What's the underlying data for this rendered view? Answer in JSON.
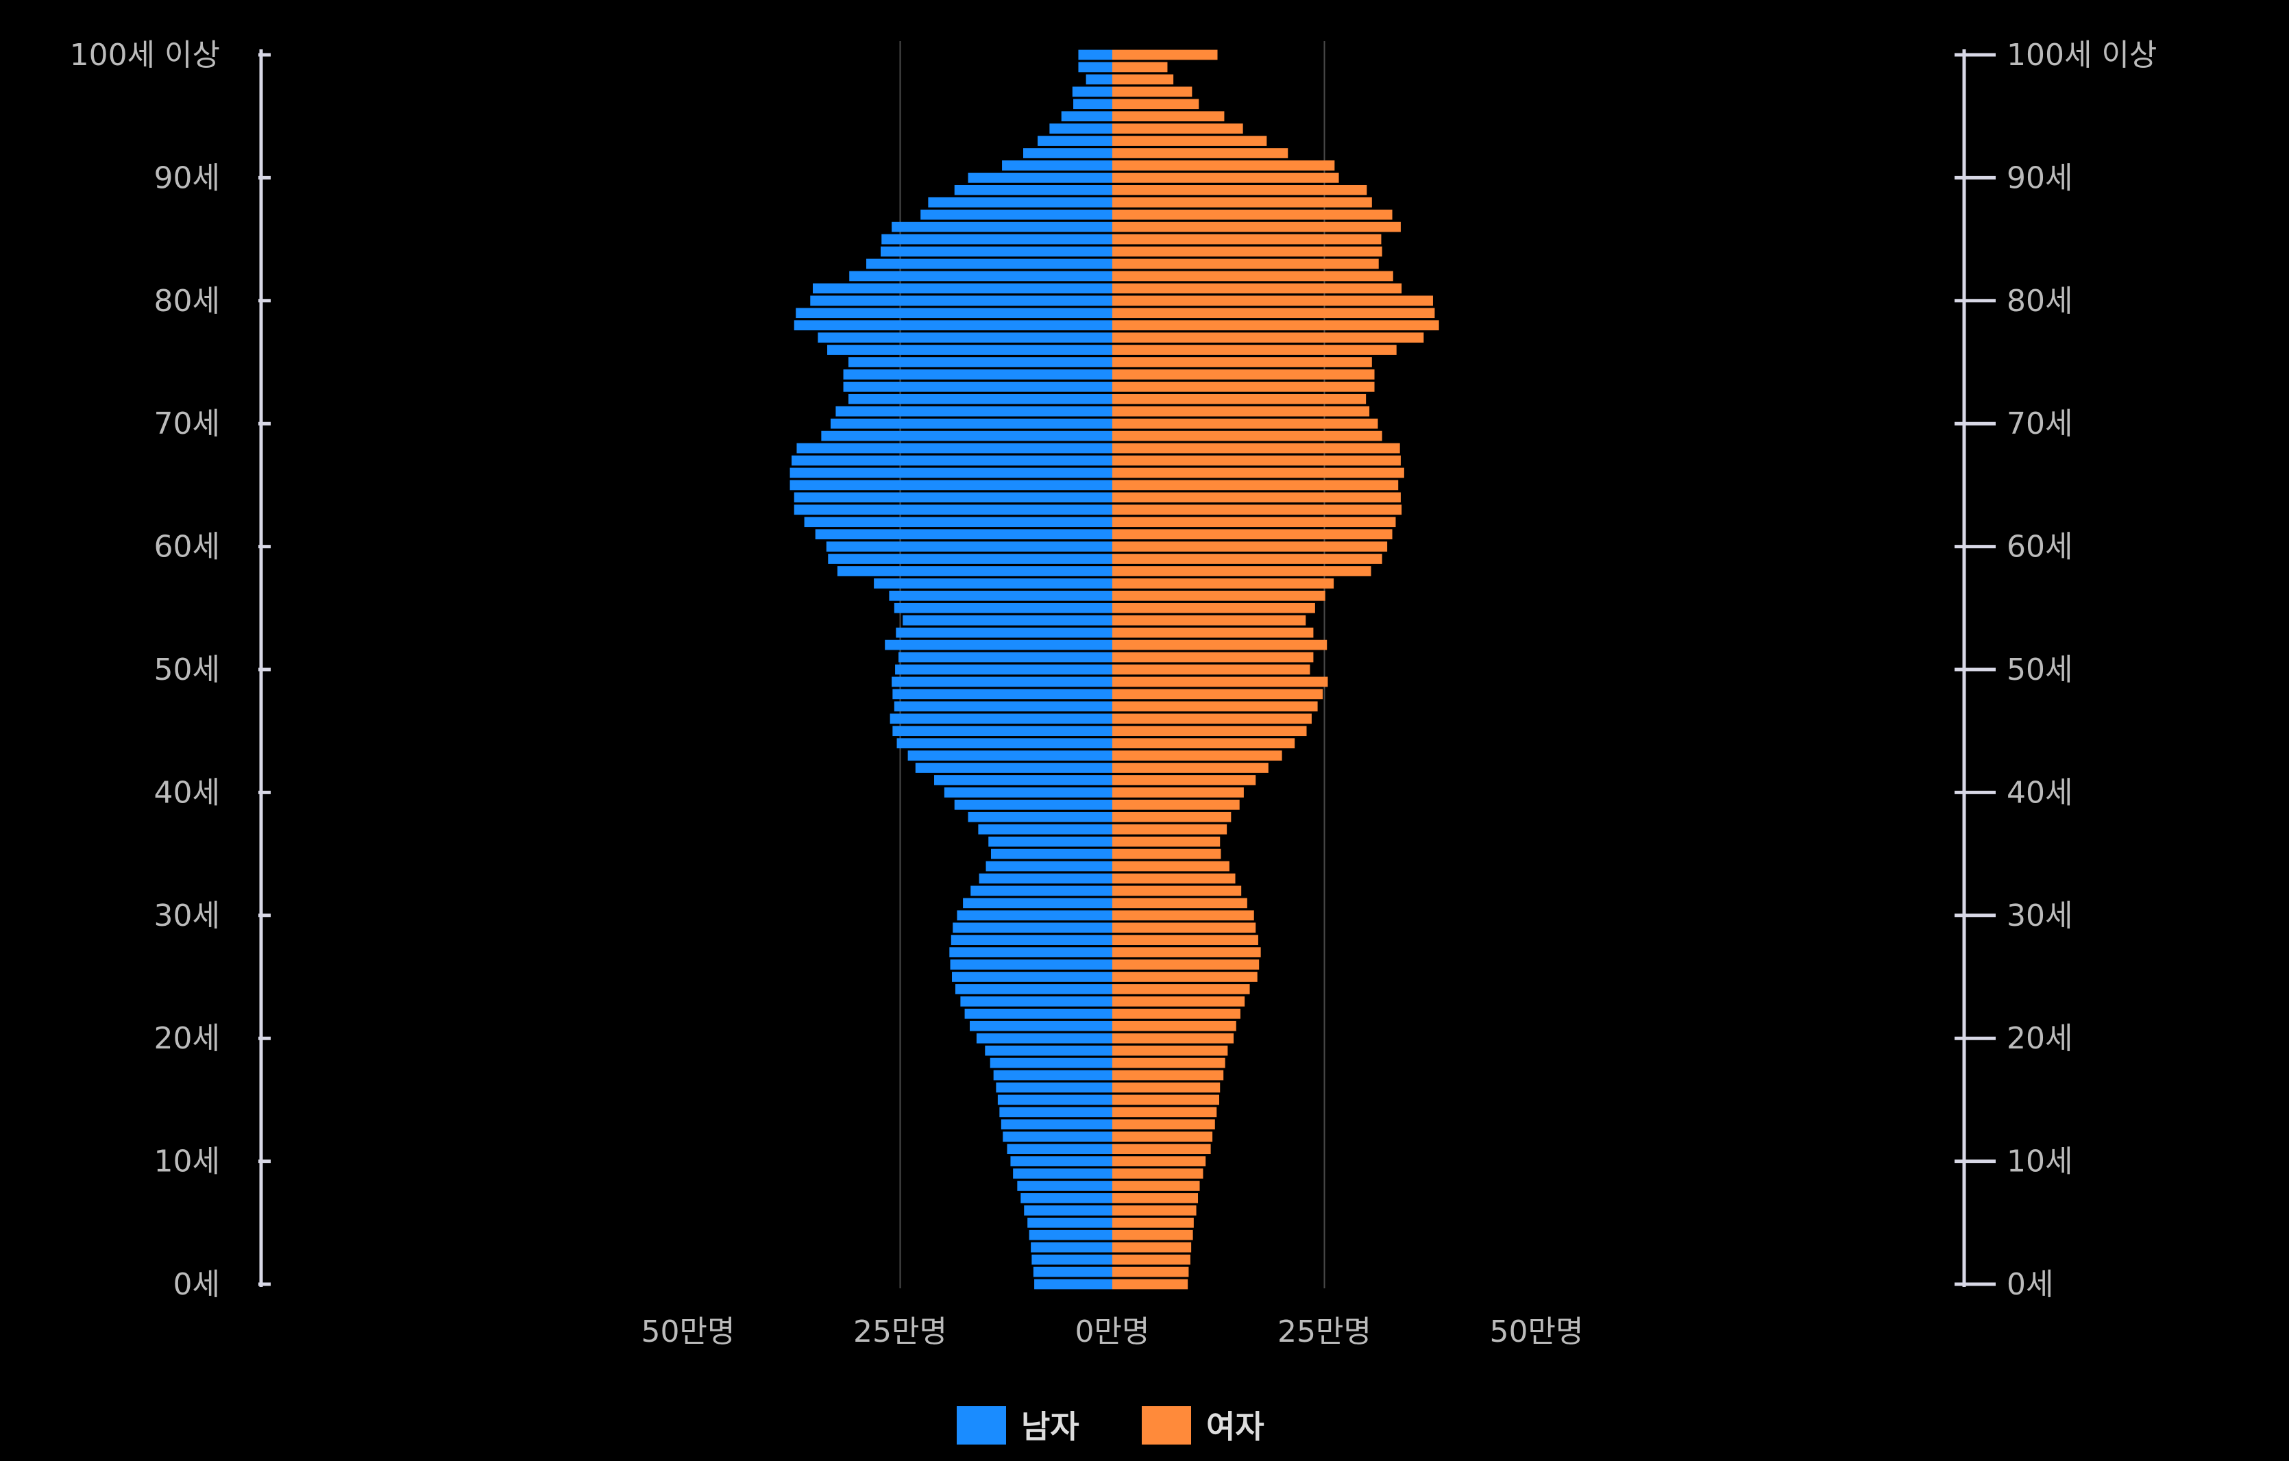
{
  "chart_data": {
    "type": "bar",
    "orientation": "horizontal",
    "subtype": "population-pyramid",
    "title": "",
    "y_ticks": [
      "0세",
      "10세",
      "20세",
      "30세",
      "40세",
      "50세",
      "60세",
      "70세",
      "80세",
      "90세",
      "100세 이상"
    ],
    "x_ticks": [
      "50만명",
      "25만명",
      "0만명",
      "25만명",
      "50만명"
    ],
    "xlim_abs": [
      0,
      50
    ],
    "unit": "만명",
    "grid": "vertical lines at 25만명",
    "legend_position": "bottom-center",
    "categories": [
      "0세",
      "1세",
      "2세",
      "3세",
      "4세",
      "5세",
      "6세",
      "7세",
      "8세",
      "9세",
      "10세",
      "11세",
      "12세",
      "13세",
      "14세",
      "15세",
      "16세",
      "17세",
      "18세",
      "19세",
      "20세",
      "21세",
      "22세",
      "23세",
      "24세",
      "25세",
      "26세",
      "27세",
      "28세",
      "29세",
      "30세",
      "31세",
      "32세",
      "33세",
      "34세",
      "35세",
      "36세",
      "37세",
      "38세",
      "39세",
      "40세",
      "41세",
      "42세",
      "43세",
      "44세",
      "45세",
      "46세",
      "47세",
      "48세",
      "49세",
      "50세",
      "51세",
      "52세",
      "53세",
      "54세",
      "55세",
      "56세",
      "57세",
      "58세",
      "59세",
      "60세",
      "61세",
      "62세",
      "63세",
      "64세",
      "65세",
      "66세",
      "67세",
      "68세",
      "69세",
      "70세",
      "71세",
      "72세",
      "73세",
      "74세",
      "75세",
      "76세",
      "77세",
      "78세",
      "79세",
      "80세",
      "81세",
      "82세",
      "83세",
      "84세",
      "85세",
      "86세",
      "87세",
      "88세",
      "89세",
      "90세",
      "91세",
      "92세",
      "93세",
      "94세",
      "95세",
      "96세",
      "97세",
      "98세",
      "99세",
      "100세 이상"
    ],
    "series": [
      {
        "name": "남자",
        "color": "#1a8cff",
        "values": [
          9.2,
          9.3,
          9.5,
          9.6,
          9.8,
          10.0,
          10.4,
          10.8,
          11.2,
          11.7,
          12.0,
          12.4,
          12.9,
          13.1,
          13.3,
          13.5,
          13.7,
          14.0,
          14.4,
          15.0,
          16.0,
          16.8,
          17.4,
          17.9,
          18.5,
          18.9,
          19.1,
          19.2,
          19.0,
          18.8,
          18.3,
          17.6,
          16.7,
          15.7,
          14.9,
          14.3,
          14.6,
          15.8,
          17.0,
          18.6,
          19.8,
          21.0,
          23.2,
          24.1,
          25.4,
          25.9,
          26.2,
          25.7,
          25.9,
          26.0,
          25.6,
          25.2,
          26.8,
          25.5,
          24.7,
          25.7,
          26.3,
          28.1,
          32.4,
          33.5,
          33.7,
          35.0,
          36.3,
          37.5,
          37.5,
          38.0,
          38.0,
          37.8,
          37.2,
          34.3,
          33.2,
          32.6,
          31.1,
          31.7,
          31.7,
          31.1,
          33.6,
          34.7,
          37.5,
          37.3,
          35.6,
          35.3,
          31.0,
          29.0,
          27.3,
          27.2,
          26.0,
          22.6,
          21.7,
          18.6,
          17.0,
          13.0,
          10.5,
          8.8,
          7.4,
          6.0,
          4.6,
          4.7,
          3.1,
          4.0,
          4.0
        ]
      },
      {
        "name": "여자",
        "color": "#ff8a3a",
        "values": [
          8.9,
          9.0,
          9.2,
          9.3,
          9.5,
          9.6,
          9.9,
          10.1,
          10.3,
          10.7,
          11.0,
          11.6,
          11.8,
          12.1,
          12.3,
          12.6,
          12.7,
          13.1,
          13.3,
          13.6,
          14.3,
          14.6,
          15.1,
          15.6,
          16.2,
          17.1,
          17.3,
          17.5,
          17.2,
          16.9,
          16.7,
          15.9,
          15.2,
          14.5,
          13.8,
          12.8,
          12.7,
          13.5,
          14.0,
          15.0,
          15.5,
          16.9,
          18.4,
          20.0,
          21.5,
          22.9,
          23.5,
          24.2,
          24.8,
          25.4,
          23.3,
          23.7,
          25.3,
          23.7,
          22.8,
          23.9,
          25.1,
          26.1,
          30.5,
          31.8,
          32.4,
          33.0,
          33.4,
          34.1,
          34.0,
          33.7,
          34.4,
          34.0,
          33.9,
          31.8,
          31.3,
          30.3,
          29.9,
          30.9,
          30.9,
          30.6,
          33.5,
          36.7,
          38.5,
          38.0,
          37.8,
          34.1,
          33.1,
          31.4,
          31.8,
          31.7,
          34.0,
          33.0,
          30.6,
          30.0,
          26.7,
          26.2,
          20.7,
          18.2,
          15.4,
          13.2,
          10.2,
          9.4,
          7.2,
          6.5,
          12.4
        ]
      }
    ]
  },
  "legend": {
    "male_label": "남자",
    "female_label": "여자"
  }
}
